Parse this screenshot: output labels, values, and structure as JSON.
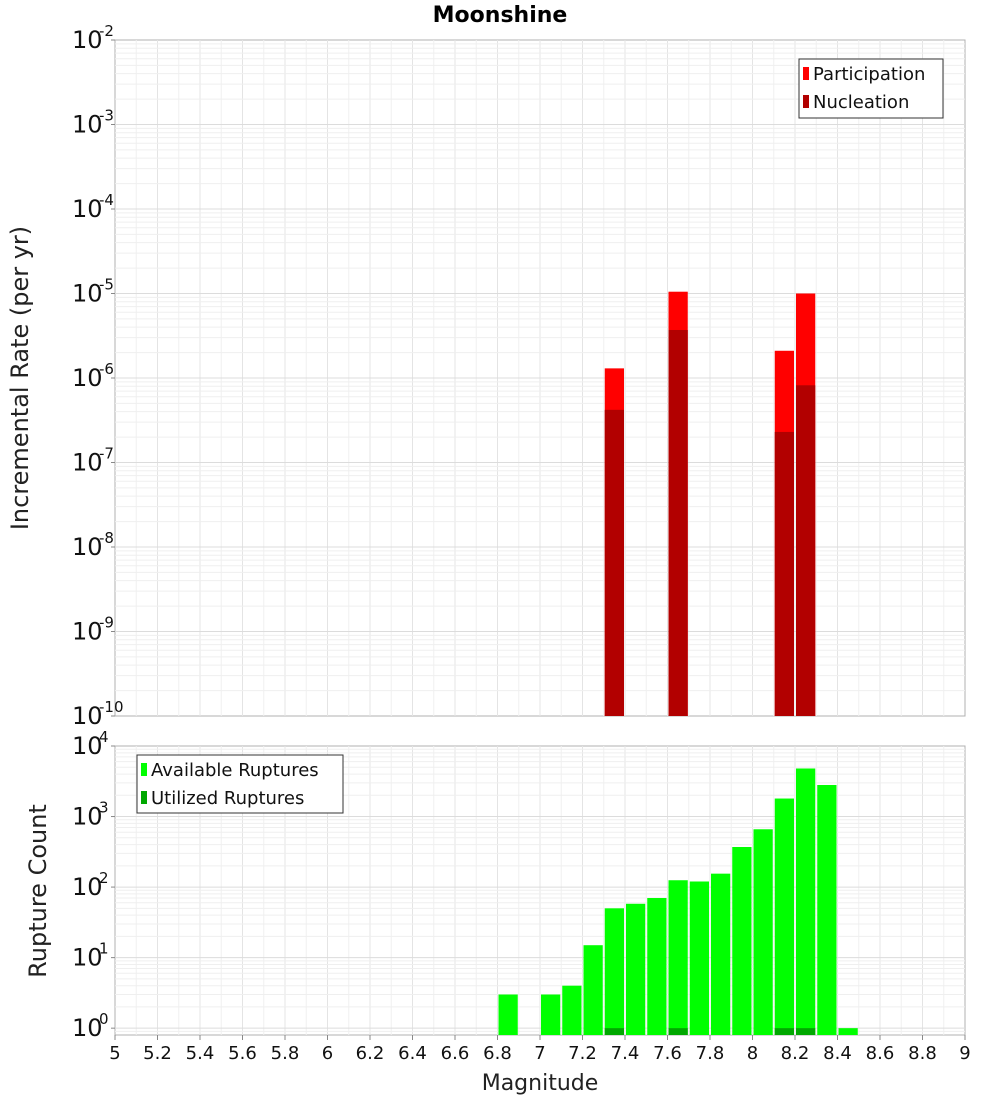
{
  "chart_data": [
    {
      "type": "bar",
      "title": "Moonshine",
      "ylabel": "Incremental Rate (per yr)",
      "xlabel": "",
      "yscale": "log",
      "ylim": [
        1e-10,
        0.01
      ],
      "xlim": [
        5,
        9
      ],
      "bar_width": 0.1,
      "grid": true,
      "legend_position": "top-right",
      "y_ticks": [
        {
          "base": "10",
          "exp": "-10"
        },
        {
          "base": "10",
          "exp": "-9"
        },
        {
          "base": "10",
          "exp": "-8"
        },
        {
          "base": "10",
          "exp": "-7"
        },
        {
          "base": "10",
          "exp": "-6"
        },
        {
          "base": "10",
          "exp": "-5"
        },
        {
          "base": "10",
          "exp": "-4"
        },
        {
          "base": "10",
          "exp": "-3"
        },
        {
          "base": "10",
          "exp": "-2"
        }
      ],
      "series": [
        {
          "name": "Participation",
          "color": "#ff0000",
          "x": [
            7.35,
            7.65,
            8.15,
            8.25
          ],
          "values": [
            1.3e-06,
            1.05e-05,
            2.1e-06,
            1e-05
          ]
        },
        {
          "name": "Nucleation",
          "color": "#b20000",
          "x": [
            7.35,
            7.65,
            8.15,
            8.25
          ],
          "values": [
            4.2e-07,
            3.7e-06,
            2.3e-07,
            8.2e-07
          ]
        }
      ]
    },
    {
      "type": "bar",
      "title": "",
      "ylabel": "Rupture Count",
      "xlabel": "Magnitude",
      "yscale": "log",
      "ylim": [
        0.8,
        10000
      ],
      "xlim": [
        5,
        9
      ],
      "bar_width": 0.1,
      "grid": true,
      "legend_position": "top-left",
      "x_ticks": [
        "5",
        "5.2",
        "5.4",
        "5.6",
        "5.8",
        "6",
        "6.2",
        "6.4",
        "6.6",
        "6.8",
        "7",
        "7.2",
        "7.4",
        "7.6",
        "7.8",
        "8",
        "8.2",
        "8.4",
        "8.6",
        "8.8",
        "9"
      ],
      "y_ticks": [
        {
          "base": "10",
          "exp": "0",
          "value": 1
        },
        {
          "base": "10",
          "exp": "1",
          "value": 10
        },
        {
          "base": "10",
          "exp": "2",
          "value": 100
        },
        {
          "base": "10",
          "exp": "3",
          "value": 1000
        },
        {
          "base": "10",
          "exp": "4",
          "value": 10000
        }
      ],
      "series": [
        {
          "name": "Available Ruptures",
          "color": "#00ff00",
          "x": [
            6.85,
            7.05,
            7.15,
            7.25,
            7.35,
            7.45,
            7.55,
            7.65,
            7.75,
            7.85,
            7.95,
            8.05,
            8.15,
            8.25,
            8.35,
            8.45
          ],
          "values": [
            3,
            3,
            4,
            15,
            50,
            58,
            70,
            125,
            120,
            155,
            370,
            660,
            1800,
            4800,
            2800,
            1
          ]
        },
        {
          "name": "Utilized Ruptures",
          "color": "#00a800",
          "x": [
            7.35,
            7.65,
            8.15,
            8.25
          ],
          "values": [
            1,
            1,
            1,
            1
          ]
        }
      ]
    }
  ]
}
